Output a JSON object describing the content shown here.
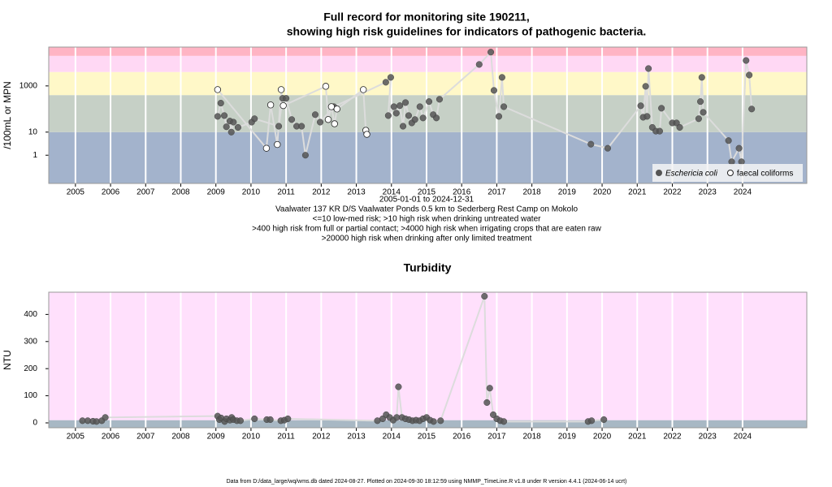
{
  "chart_data": [
    {
      "type": "scatter",
      "title": [
        "Full record for monitoring site 190211,",
        "showing high risk guidelines for indicators of pathogenic bacteria."
      ],
      "ylabel": "/100mL or MPN",
      "log": true,
      "notes": [
        "2005-01-01 to 2024-12-31",
        "Vaalwater 137 KR D/S Vaalwater Ponds 0.5 km to Sederberg Rest Camp on Mokolo",
        "<=10 low-med risk; >10 high risk when drinking untreated water",
        ">400 high risk from full or partial contact; >4000 high risk when irrigating crops that are eaten raw",
        ">20000 high risk when drinking after only limited treatment"
      ],
      "xlim": [
        2004.24,
        2025.83
      ],
      "xticks": [
        2005,
        2006,
        2007,
        2008,
        2009,
        2010,
        2011,
        2012,
        2013,
        2014,
        2015,
        2016,
        2017,
        2018,
        2019,
        2020,
        2021,
        2022,
        2023,
        2024
      ],
      "ylim": [
        0.06,
        48000
      ],
      "yticks": [
        1,
        10,
        1000
      ],
      "thresholds": [
        10,
        400,
        4000,
        20000
      ],
      "band_colors": [
        "#a3b3cc",
        "#c6d0c6",
        "#fff8c8",
        "#ffd8f4",
        "#ffb4c4"
      ],
      "legend": "lower right",
      "series": [
        {
          "name": "Eschericia coli",
          "marker": "filled",
          "color": "#555555",
          "x": [
            2009.05,
            2009.14,
            2009.24,
            2009.3,
            2009.4,
            2009.44,
            2009.5,
            2009.63,
            2010.02,
            2010.1,
            2010.79,
            2010.9,
            2011.0,
            2011.16,
            2011.3,
            2011.44,
            2011.55,
            2011.83,
            2011.97,
            2012.36,
            2013.84,
            2013.98,
            2013.91,
            2014.07,
            2014.14,
            2014.24,
            2014.33,
            2014.4,
            2014.49,
            2014.58,
            2014.67,
            2014.81,
            2014.9,
            2015.07,
            2015.19,
            2015.28,
            2015.37,
            2016.5,
            2016.83,
            2016.92,
            2017.06,
            2017.15,
            2017.2,
            2019.68,
            2020.16,
            2021.1,
            2021.17,
            2021.24,
            2021.28,
            2021.32,
            2021.43,
            2021.53,
            2021.64,
            2021.69,
            2022.0,
            2022.12,
            2022.21,
            2022.75,
            2022.8,
            2022.84,
            2022.88,
            2023.6,
            2023.69,
            2023.9,
            2023.97,
            2024.1,
            2024.19,
            2024.26
          ],
          "values": [
            48,
            180,
            52,
            17,
            30,
            10,
            27,
            16,
            27,
            38,
            18,
            290,
            290,
            35,
            18,
            18,
            1,
            57,
            27,
            126,
            1440,
            2340,
            52,
            126,
            66,
            140,
            18,
            190,
            52,
            25,
            35,
            126,
            41,
            210,
            57,
            41,
            263,
            8500,
            29000,
            640,
            48,
            2340,
            126,
            3,
            2,
            138,
            44,
            960,
            48,
            5650,
            16,
            11,
            11,
            108,
            25,
            25,
            16,
            38,
            210,
            2340,
            72,
            4.3,
            0.52,
            2,
            0.52,
            12600,
            2950,
            100
          ]
        },
        {
          "name": "faecal coliforms",
          "marker": "open",
          "color": "#222222",
          "x": [
            2009.05,
            2010.44,
            2010.56,
            2010.75,
            2010.86,
            2010.92,
            2012.13,
            2012.2,
            2012.29,
            2012.38,
            2012.45,
            2013.2,
            2013.27,
            2013.3
          ],
          "values": [
            690,
            2,
            150,
            2.9,
            690,
            140,
            960,
            35,
            126,
            23,
            100,
            690,
            12,
            8
          ]
        }
      ]
    },
    {
      "type": "scatter",
      "title": "Turbidity",
      "ylabel": "NTU",
      "log": false,
      "xlim": [
        2004.24,
        2025.83
      ],
      "xticks": [
        2005,
        2006,
        2007,
        2008,
        2009,
        2010,
        2011,
        2012,
        2013,
        2014,
        2015,
        2016,
        2017,
        2018,
        2019,
        2020,
        2021,
        2022,
        2023,
        2024
      ],
      "ylim": [
        -18,
        482
      ],
      "yticks": [
        0,
        100,
        200,
        300,
        400
      ],
      "thresholds": [
        10
      ],
      "band_colors": [
        "#a8b8c4",
        "#ffe0fc"
      ],
      "series": [
        {
          "marker": "filled",
          "color": "#555555",
          "x": [
            2005.2,
            2005.35,
            2005.5,
            2005.6,
            2005.75,
            2005.85,
            2009.05,
            2009.1,
            2009.15,
            2009.25,
            2009.3,
            2009.4,
            2009.45,
            2009.5,
            2009.6,
            2009.7,
            2010.1,
            2010.45,
            2010.55,
            2010.85,
            2010.95,
            2011.05,
            2013.6,
            2013.75,
            2013.85,
            2013.95,
            2014.05,
            2014.15,
            2014.2,
            2014.3,
            2014.4,
            2014.5,
            2014.6,
            2014.7,
            2014.8,
            2014.9,
            2015.0,
            2015.1,
            2015.2,
            2015.4,
            2016.65,
            2016.72,
            2016.8,
            2016.9,
            2017.0,
            2017.1,
            2017.2,
            2019.6,
            2019.7,
            2020.05
          ],
          "values": [
            8,
            8,
            6,
            5,
            8,
            20,
            25,
            12,
            18,
            5,
            15,
            10,
            20,
            12,
            8,
            8,
            15,
            12,
            12,
            8,
            10,
            15,
            8,
            15,
            30,
            20,
            10,
            20,
            133,
            20,
            15,
            12,
            8,
            10,
            8,
            15,
            20,
            10,
            5,
            8,
            467,
            75,
            128,
            30,
            15,
            8,
            5,
            5,
            8,
            12
          ]
        }
      ]
    }
  ],
  "footer": "Data from D:/data_large/wq/wms.db dated 2024-08-27. Plotted on 2024-09-30 18:12:59 using NMMP_TimeLine.R v1.8 under R version 4.4.1 (2024-06-14 ucrt)"
}
